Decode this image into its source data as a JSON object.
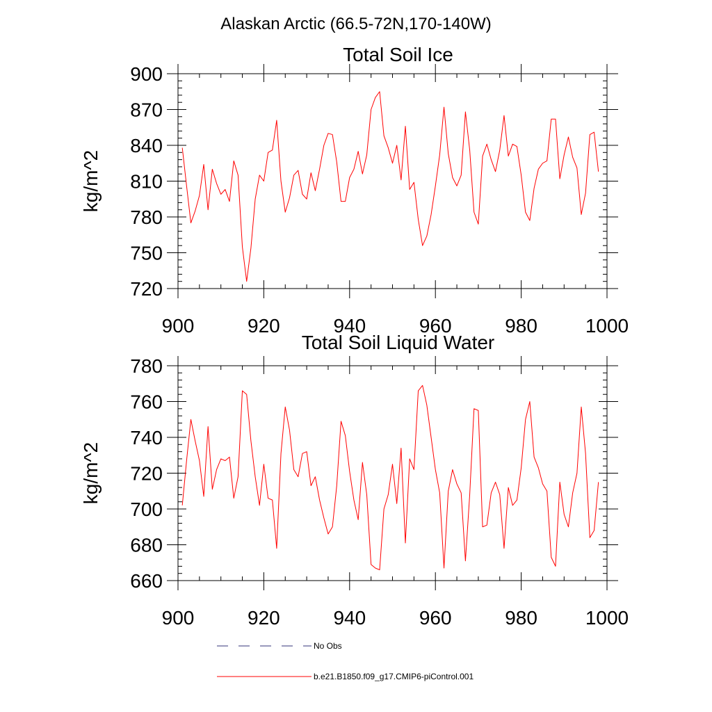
{
  "figure": {
    "title": "Alaskan Arctic (66.5-72N,170-140W)"
  },
  "colors": {
    "model": "#ff0000",
    "obs": "#33337a",
    "axes": "#000000"
  },
  "legend": {
    "entries": [
      {
        "label": "No Obs",
        "style": "dashed",
        "color": "#33337a"
      },
      {
        "label": "b.e21.B1850.f09_g17.CMIP6-piControl.001",
        "style": "solid",
        "color": "#ff0000"
      }
    ]
  },
  "chart_data": [
    {
      "type": "line",
      "title": "Total Soil Ice",
      "xlabel": "",
      "ylabel": "kg/m^2",
      "xlim": [
        900,
        1000
      ],
      "ylim": [
        720,
        900
      ],
      "xticks": [
        900,
        920,
        940,
        960,
        980,
        1000
      ],
      "yticks": [
        720,
        750,
        780,
        810,
        840,
        870,
        900
      ],
      "x_start": 901,
      "series": [
        {
          "name": "b.e21.B1850.f09_g17.CMIP6-piControl.001",
          "color": "#ff0000",
          "values": [
            838,
            806,
            775,
            785,
            798,
            824,
            786,
            820,
            808,
            799,
            803,
            793,
            827,
            815,
            755,
            726,
            754,
            795,
            815,
            810,
            834,
            836,
            861,
            810,
            784,
            796,
            815,
            819,
            799,
            795,
            817,
            802,
            820,
            840,
            850,
            849,
            826,
            793,
            793,
            813,
            820,
            835,
            816,
            832,
            870,
            880,
            885,
            848,
            838,
            825,
            840,
            811,
            856,
            803,
            809,
            778,
            756,
            764,
            782,
            806,
            832,
            872,
            833,
            813,
            806,
            815,
            868,
            836,
            784,
            774,
            831,
            841,
            828,
            818,
            836,
            865,
            831,
            841,
            839,
            815,
            784,
            777,
            804,
            820,
            825,
            827,
            862,
            862,
            812,
            832,
            847,
            830,
            821,
            782,
            800,
            849,
            851,
            818
          ]
        }
      ]
    },
    {
      "type": "line",
      "title": "Total Soil Liquid Water",
      "xlabel": "",
      "ylabel": "kg/m^2",
      "xlim": [
        900,
        1000
      ],
      "ylim": [
        660,
        780
      ],
      "xticks": [
        900,
        920,
        940,
        960,
        980,
        1000
      ],
      "yticks": [
        660,
        680,
        700,
        720,
        740,
        760,
        780
      ],
      "x_start": 901,
      "series": [
        {
          "name": "b.e21.B1850.f09_g17.CMIP6-piControl.001",
          "color": "#ff0000",
          "values": [
            702,
            727,
            750,
            738,
            727,
            707,
            746,
            711,
            722,
            728,
            727,
            729,
            706,
            718,
            766,
            764,
            738,
            718,
            702,
            725,
            706,
            705,
            678,
            731,
            757,
            744,
            722,
            718,
            731,
            732,
            713,
            718,
            705,
            695,
            686,
            690,
            713,
            749,
            741,
            721,
            705,
            694,
            726,
            708,
            669,
            667,
            666,
            700,
            708,
            725,
            703,
            734,
            681,
            728,
            722,
            766,
            769,
            758,
            740,
            722,
            709,
            667,
            710,
            722,
            714,
            709,
            671,
            708,
            756,
            755,
            690,
            691,
            709,
            715,
            708,
            678,
            712,
            702,
            705,
            723,
            750,
            760,
            729,
            723,
            714,
            710,
            673,
            668,
            715,
            697,
            690,
            709,
            720,
            757,
            731,
            684,
            688,
            715
          ]
        }
      ]
    }
  ]
}
